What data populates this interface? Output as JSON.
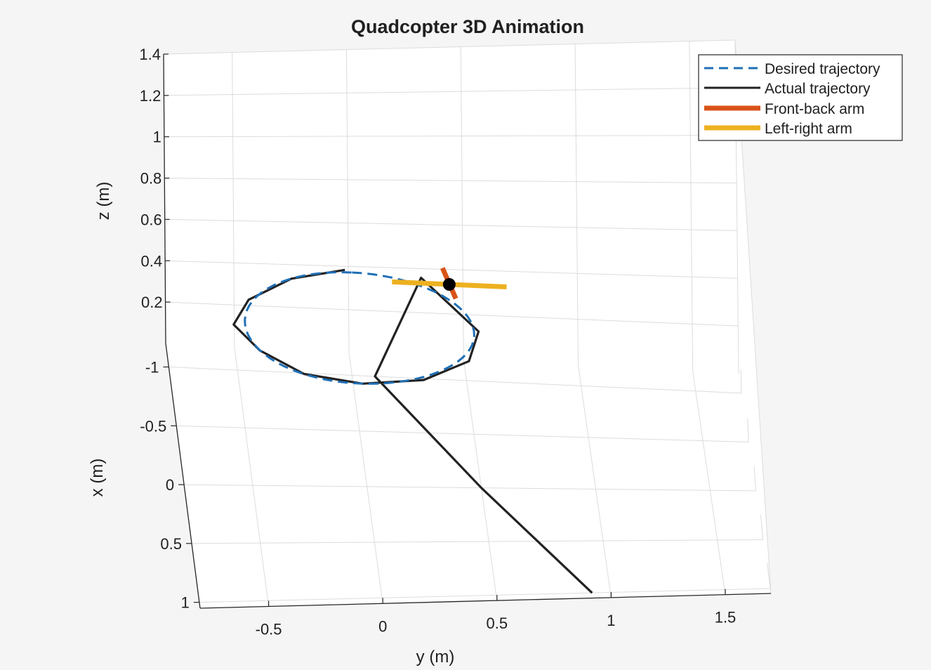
{
  "chart_data": {
    "type": "line",
    "title": "Quadcopter 3D Animation",
    "xlabel": "x (m)",
    "ylabel": "y (m)",
    "zlabel": "z (m)",
    "z_ticks": [
      "0.2",
      "0.4",
      "0.6",
      "0.8",
      "1",
      "1.2",
      "1.4"
    ],
    "x_ticks": [
      "-1",
      "-0.5",
      "0",
      "0.5",
      "1"
    ],
    "y_ticks": [
      "-0.5",
      "0",
      "0.5",
      "1",
      "1.5"
    ],
    "xlim": [
      -1.2,
      1.05
    ],
    "ylim": [
      -0.8,
      1.7
    ],
    "zlim": [
      0,
      1.4
    ],
    "grid": true,
    "legend_position": "top-right",
    "legend": [
      "Desired trajectory",
      "Actual trajectory",
      "Front-back arm",
      "Left-right arm"
    ],
    "colors": {
      "desired": "#1f6fb5",
      "actual": "#222222",
      "front_back_arm": "#d95319",
      "left_right_arm": "#edb120",
      "center": "#000000"
    },
    "series": [
      {
        "name": "Desired trajectory",
        "style": "dashed",
        "points": [
          [
            -1.0,
            0.0,
            0.5
          ],
          [
            -0.934,
            0.25,
            0.5
          ],
          [
            -0.75,
            0.433,
            0.5
          ],
          [
            -0.5,
            0.5,
            0.5
          ],
          [
            -0.25,
            0.433,
            0.5
          ],
          [
            -0.066,
            0.25,
            0.5
          ],
          [
            0.0,
            0.0,
            0.5
          ],
          [
            -0.066,
            -0.25,
            0.5
          ],
          [
            -0.25,
            -0.433,
            0.5
          ],
          [
            -0.5,
            -0.5,
            0.5
          ],
          [
            -0.75,
            -0.433,
            0.5
          ],
          [
            -0.934,
            -0.25,
            0.5
          ],
          [
            -1.0,
            0.0,
            0.5
          ]
        ]
      },
      {
        "name": "Actual trajectory",
        "style": "solid",
        "points": [
          [
            1.0,
            0.92,
            0.0
          ],
          [
            0.0,
            0.5,
            0.0
          ],
          [
            -1.0,
            0.1,
            0.0
          ],
          [
            -0.98,
            0.3,
            0.5
          ],
          [
            -0.5,
            0.52,
            0.5
          ],
          [
            -0.22,
            0.46,
            0.5
          ],
          [
            -0.04,
            0.25,
            0.5
          ],
          [
            0.0,
            -0.02,
            0.5
          ],
          [
            -0.08,
            -0.27,
            0.5
          ],
          [
            -0.28,
            -0.45,
            0.5
          ],
          [
            -0.5,
            -0.55,
            0.5
          ],
          [
            -0.72,
            -0.47,
            0.5
          ],
          [
            -0.92,
            -0.27,
            0.5
          ],
          [
            -1.02,
            -0.03,
            0.5
          ]
        ]
      }
    ],
    "quadcopter": {
      "center": [
        -0.93,
        0.42,
        0.5
      ],
      "front_back_arm": [
        [
          -1.08,
          0.4,
          0.5
        ],
        [
          -0.8,
          0.44,
          0.5
        ]
      ],
      "left_right_arm": [
        [
          -0.93,
          0.17,
          0.5
        ],
        [
          -0.93,
          0.67,
          0.5
        ]
      ]
    }
  }
}
